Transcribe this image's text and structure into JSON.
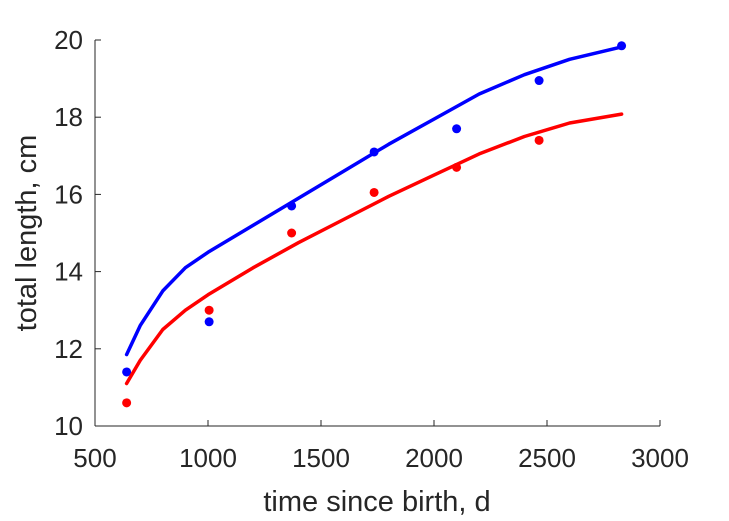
{
  "chart_data": {
    "type": "scatter",
    "title": "",
    "xlabel": "time since birth, d",
    "ylabel": "total length, cm",
    "xlim": [
      500,
      3000
    ],
    "ylim": [
      10,
      20
    ],
    "xticks": [
      500,
      1000,
      1500,
      2000,
      2500,
      3000
    ],
    "yticks": [
      10,
      12,
      14,
      16,
      18,
      20
    ],
    "xtick_labels": [
      "500",
      "1000",
      "1500",
      "2000",
      "2500",
      "3000"
    ],
    "ytick_labels": [
      "10",
      "12",
      "14",
      "16",
      "18",
      "20"
    ],
    "grid": false,
    "legend": "none",
    "series": [
      {
        "color": "#0000ff",
        "points": {
          "x": [
            640,
            1005,
            1370,
            1735,
            2100,
            2465,
            2830
          ],
          "y": [
            11.4,
            12.7,
            15.7,
            17.1,
            17.7,
            18.95,
            19.85
          ]
        },
        "fit": {
          "x": [
            640,
            700,
            800,
            900,
            1000,
            1200,
            1400,
            1600,
            1800,
            2000,
            2200,
            2400,
            2600,
            2830
          ],
          "y": [
            11.85,
            12.6,
            13.5,
            14.1,
            14.5,
            15.2,
            15.9,
            16.6,
            17.3,
            17.95,
            18.6,
            19.1,
            19.5,
            19.82
          ]
        }
      },
      {
        "color": "#ff0000",
        "points": {
          "x": [
            640,
            1005,
            1370,
            1735,
            2100,
            2465
          ],
          "y": [
            10.6,
            13.0,
            15.0,
            16.05,
            16.7,
            17.4
          ]
        },
        "fit": {
          "x": [
            640,
            700,
            800,
            900,
            1000,
            1200,
            1400,
            1600,
            1800,
            2000,
            2200,
            2400,
            2600,
            2830
          ],
          "y": [
            11.1,
            11.7,
            12.5,
            13.0,
            13.4,
            14.1,
            14.75,
            15.35,
            15.95,
            16.5,
            17.05,
            17.5,
            17.85,
            18.08
          ]
        }
      }
    ]
  }
}
